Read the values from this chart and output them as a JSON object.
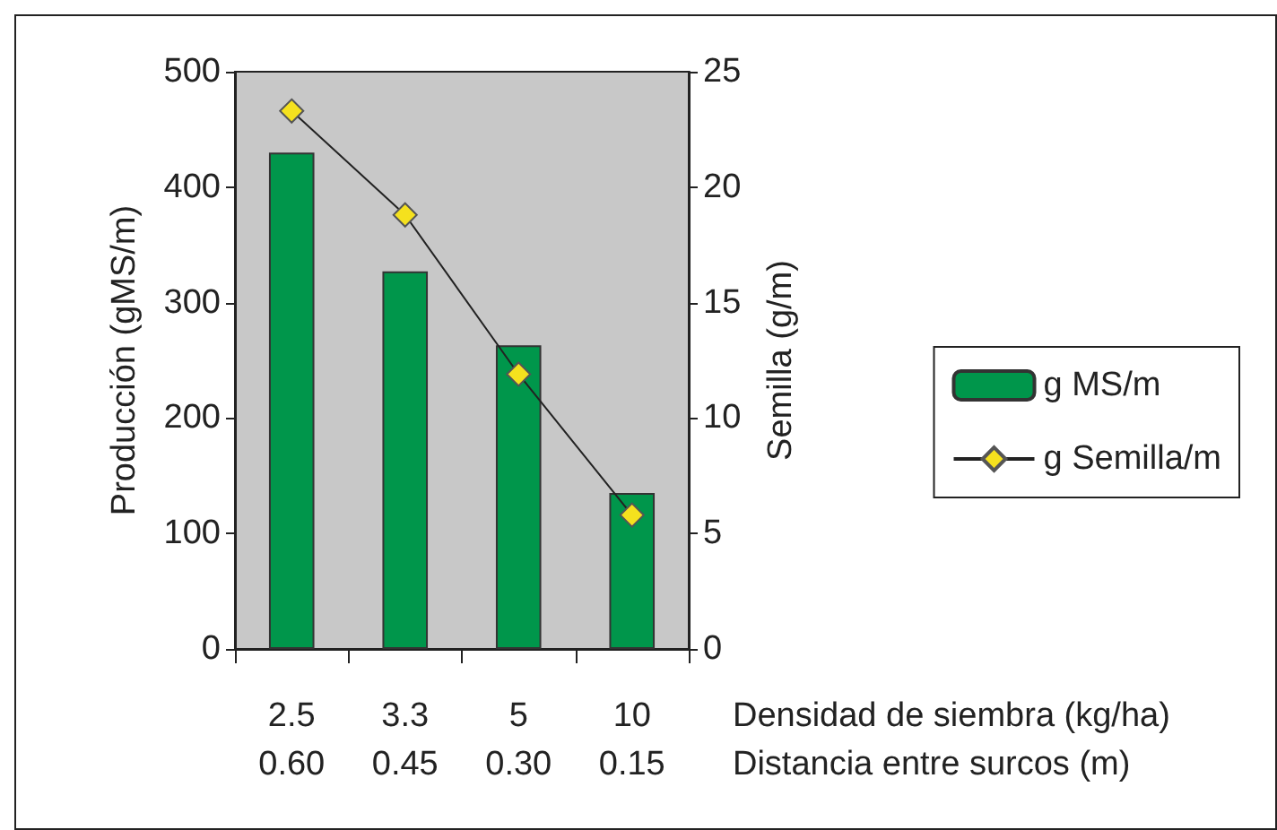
{
  "chart_data": {
    "type": "bar",
    "categories": [
      "2.5\n0.60",
      "3.3\n0.45",
      "5\n0.30",
      "10\n0.15"
    ],
    "xlabel": "Densidad de siembra (kg/ha)\nDistancia entre surcos (m)",
    "ylabel": "Producción (gMS/m)",
    "y2label": "Semilla (g/m)",
    "series": [
      {
        "name": "g MS/m",
        "color": "#00964b",
        "values": [
          430,
          327,
          263,
          135
        ]
      },
      {
        "name": "g Semilla/m",
        "type": "line",
        "axis": "y2",
        "color": "#f5e11e",
        "marker": "diamond",
        "values": [
          23.3,
          18.8,
          11.9,
          5.8
        ]
      }
    ],
    "ylim": [
      0,
      500
    ],
    "yticks": [
      0,
      100,
      200,
      300,
      400,
      500
    ],
    "y2lim": [
      0,
      25
    ],
    "y2ticks": [
      0,
      5,
      10,
      15,
      20,
      25
    ],
    "grid": false,
    "legend": "right"
  }
}
